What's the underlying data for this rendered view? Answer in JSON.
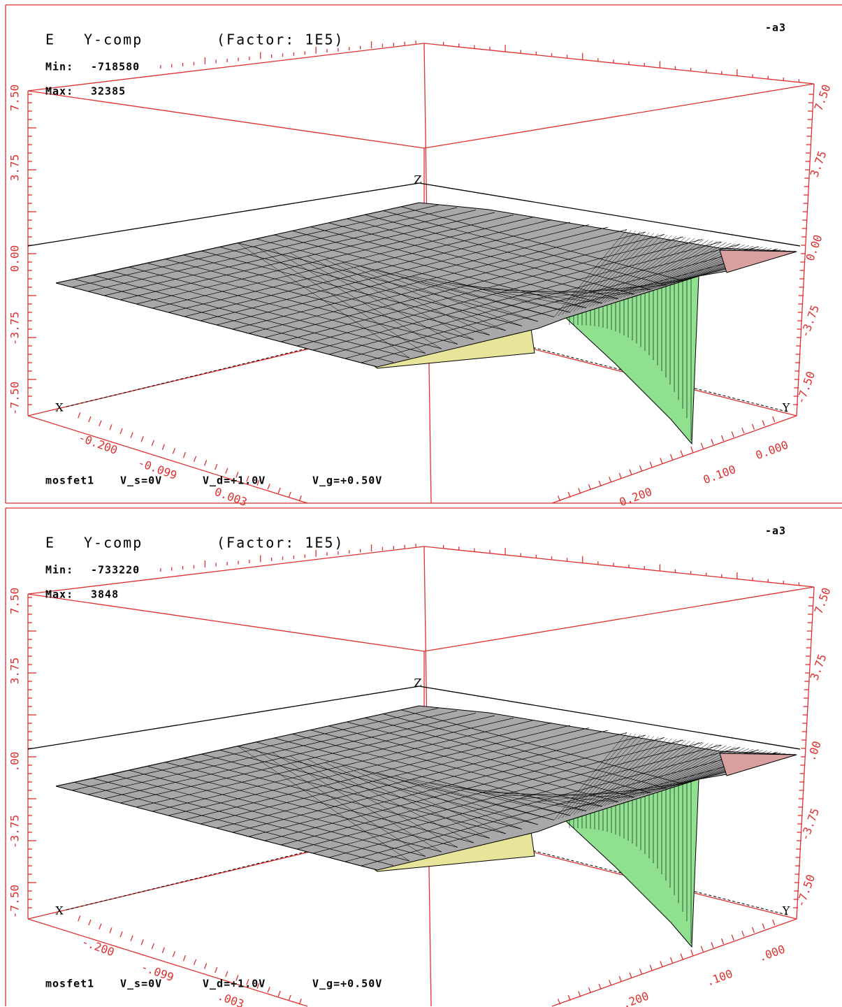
{
  "panels": [
    {
      "quantity": "E",
      "component": "Y-comp",
      "factor": "(Factor: 1E5)",
      "corner": "-a3",
      "min_label": "Min:",
      "min": "-718580",
      "max_label": "Max:",
      "max": "32385",
      "axes": {
        "x": "X",
        "y": "Y",
        "z": "Z"
      },
      "z_ticks_left": [
        "7.50",
        "3.75",
        "0.00",
        "-3.75",
        "-7.50"
      ],
      "z_ticks_right": [
        "7.50",
        "3.75",
        "0.00",
        "-3.75",
        "-7.50"
      ],
      "x_ticks": [
        "-0.200",
        "-0.099",
        "0.003"
      ],
      "y_ticks": [
        "0.000",
        "0.100",
        "0.200"
      ],
      "footer": [
        "mosfet1",
        "V_s=0V",
        "V_d=+1.0V",
        "V_g=+0.50V"
      ]
    },
    {
      "quantity": "E",
      "component": "Y-comp",
      "factor": "(Factor: 1E5)",
      "corner": "-a3",
      "min_label": "Min:",
      "min": "-733220",
      "max_label": "Max:",
      "max": "3848",
      "axes": {
        "x": "X",
        "y": "Y",
        "z": "Z"
      },
      "z_ticks_left": [
        "7.50",
        "3.75",
        ".00",
        "-3.75",
        "-7.50"
      ],
      "z_ticks_right": [
        "7.50",
        "3.75",
        ".00",
        "-3.75",
        "-7.50"
      ],
      "x_ticks": [
        "-.200",
        "-.099",
        ".003"
      ],
      "y_ticks": [
        ".000",
        ".100",
        ".200"
      ],
      "footer": [
        "mosfet1",
        "V_s=0V",
        "V_d=+1.0V",
        "V_g=+0.50V"
      ]
    }
  ]
}
